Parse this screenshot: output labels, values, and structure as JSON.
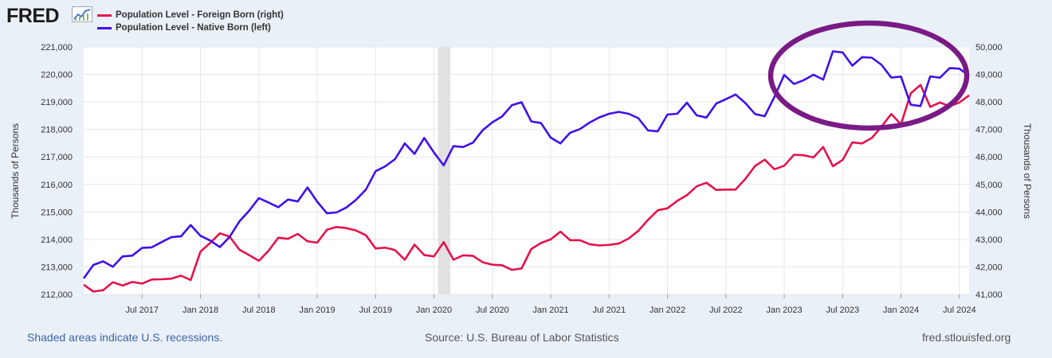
{
  "header": {
    "logo_text": "FRED",
    "logo_icon": "trend-line-icon"
  },
  "legend": [
    {
      "label": "Population Level - Foreign Born (right)",
      "color": "#e4134b"
    },
    {
      "label": "Population Level - Native Born (left)",
      "color": "#4010e9"
    }
  ],
  "footer": {
    "recession_note": "Shaded areas indicate U.S. recessions.",
    "source": "Source: U.S. Bureau of Labor Statistics",
    "site": "fred.stlouisfed.org"
  },
  "annotation": {
    "shape": "ellipse",
    "color": "#7a1a86",
    "highlights": "2023-2024"
  },
  "chart_data": {
    "type": "line",
    "title": "",
    "xlabel": "",
    "ylabel_left": "Thousands of Persons",
    "ylabel_right": "Thousands of Persons",
    "x_start": "2017-01",
    "x_end": "2024-08",
    "x_ticks": [
      {
        "label": "Jul 2017",
        "x": 6
      },
      {
        "label": "Jan 2018",
        "x": 12
      },
      {
        "label": "Jul 2018",
        "x": 18
      },
      {
        "label": "Jan 2019",
        "x": 24
      },
      {
        "label": "Jul 2019",
        "x": 30
      },
      {
        "label": "Jan 2020",
        "x": 36
      },
      {
        "label": "Jul 2020",
        "x": 42
      },
      {
        "label": "Jan 2021",
        "x": 48
      },
      {
        "label": "Jul 2021",
        "x": 54
      },
      {
        "label": "Jan 2022",
        "x": 60
      },
      {
        "label": "Jul 2022",
        "x": 66
      },
      {
        "label": "Jan 2023",
        "x": 72
      },
      {
        "label": "Jul 2023",
        "x": 78
      },
      {
        "label": "Jan 2024",
        "x": 84
      },
      {
        "label": "Jul 2024",
        "x": 90
      }
    ],
    "left_axis": {
      "ylim": [
        212000,
        221000
      ],
      "ticks": [
        "212,000",
        "213,000",
        "214,000",
        "215,000",
        "216,000",
        "217,000",
        "218,000",
        "219,000",
        "220,000",
        "221,000"
      ]
    },
    "right_axis": {
      "ylim": [
        41000,
        50000
      ],
      "ticks": [
        "41,000",
        "42,000",
        "43,000",
        "44,000",
        "45,000",
        "46,000",
        "47,000",
        "48,000",
        "49,000",
        "50,000"
      ]
    },
    "recession": {
      "start": 37,
      "end": 39
    },
    "series": [
      {
        "name": "Population Level - Native Born (left)",
        "axis": "left",
        "color": "#4010e9",
        "values": [
          212580,
          213070,
          213200,
          213000,
          213380,
          213410,
          213690,
          213710,
          213900,
          214080,
          214110,
          214520,
          214130,
          213960,
          213720,
          214090,
          214650,
          215040,
          215500,
          215340,
          215170,
          215450,
          215380,
          215890,
          215370,
          214950,
          214980,
          215160,
          215440,
          215810,
          216480,
          216660,
          216920,
          217490,
          217110,
          217690,
          217160,
          216690,
          217390,
          217360,
          217520,
          217970,
          218260,
          218470,
          218880,
          218990,
          218290,
          218230,
          217700,
          217490,
          217880,
          218010,
          218250,
          218440,
          218570,
          218640,
          218570,
          218410,
          217960,
          217930,
          218540,
          218570,
          218970,
          218510,
          218430,
          218940,
          219100,
          219270,
          218960,
          218560,
          218480,
          219190,
          219980,
          219650,
          219790,
          219990,
          219810,
          220840,
          220800,
          220320,
          220630,
          220610,
          220350,
          219890,
          219920,
          218900,
          218850,
          219930,
          219880,
          220230,
          220210,
          219950
        ]
      },
      {
        "name": "Population Level - Foreign Born (right)",
        "axis": "right",
        "color": "#e4134b",
        "values": [
          41350,
          41100,
          41150,
          41440,
          41320,
          41450,
          41390,
          41540,
          41550,
          41570,
          41680,
          41520,
          42550,
          42870,
          43220,
          43100,
          42630,
          42430,
          42220,
          42590,
          43060,
          43020,
          43200,
          42930,
          42880,
          43350,
          43450,
          43410,
          43320,
          43150,
          42670,
          42700,
          42610,
          42260,
          42810,
          42430,
          42380,
          42900,
          42260,
          42420,
          42400,
          42170,
          42080,
          42060,
          41890,
          41940,
          42650,
          42870,
          43000,
          43280,
          42970,
          42970,
          42820,
          42780,
          42800,
          42850,
          43030,
          43310,
          43710,
          44060,
          44130,
          44400,
          44610,
          44930,
          45060,
          44800,
          44810,
          44810,
          45200,
          45670,
          45900,
          45550,
          45680,
          46080,
          46060,
          45980,
          46360,
          45660,
          45890,
          46530,
          46490,
          46690,
          47100,
          47560,
          47180,
          48310,
          48620,
          47820,
          47980,
          47840,
          47980,
          48240
        ]
      }
    ]
  }
}
